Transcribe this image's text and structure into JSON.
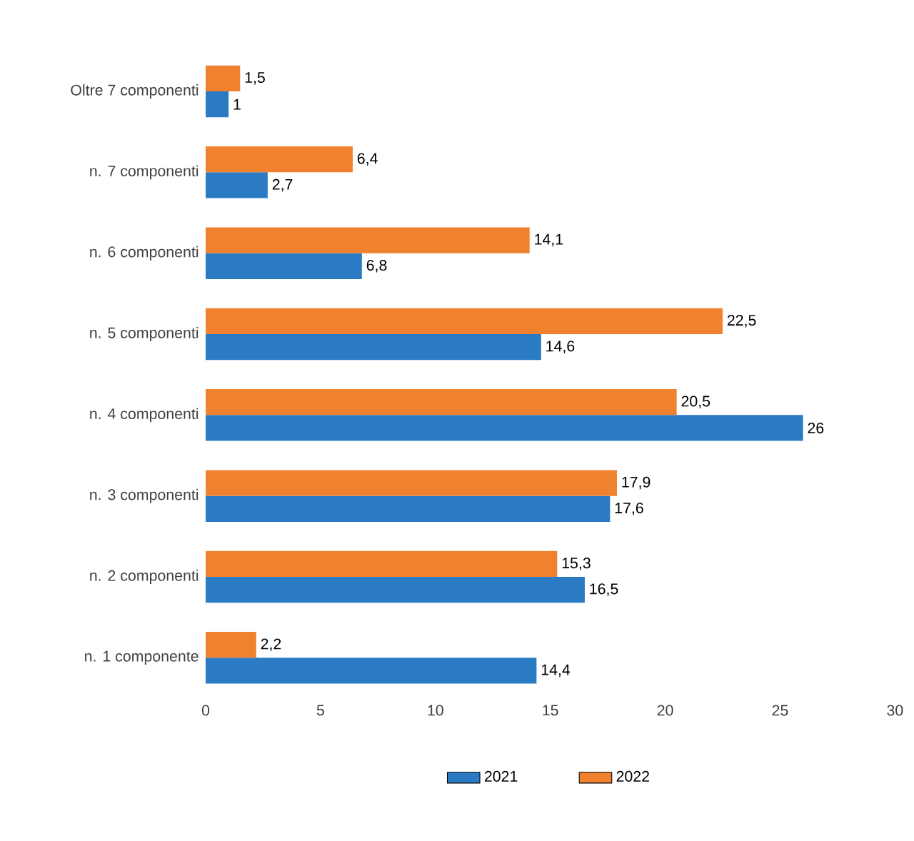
{
  "chart_data": {
    "type": "bar",
    "orientation": "horizontal",
    "categories": [
      "Oltre 7 componenti",
      "n. 7 componenti",
      "n. 6 componenti",
      "n. 5 componenti",
      "n. 4 componenti",
      "n. 3 componenti",
      "n. 2 componenti",
      "n. 1 componente"
    ],
    "series": [
      {
        "name": "2021",
        "color": "#2b7bc4",
        "values": [
          1,
          2.7,
          6.8,
          14.6,
          26,
          17.6,
          16.5,
          14.4
        ],
        "value_labels": [
          "1",
          "2,7",
          "6,8",
          "14,6",
          "26",
          "17,6",
          "16,5",
          "14,4"
        ]
      },
      {
        "name": "2022",
        "color": "#f0822f",
        "values": [
          1.5,
          6.4,
          14.1,
          22.5,
          20.5,
          17.9,
          15.3,
          2.2
        ],
        "value_labels": [
          "1,5",
          "6,4",
          "14,1",
          "22,5",
          "20,5",
          "17,9",
          "15,3",
          "2,2"
        ]
      }
    ],
    "xlim": [
      0,
      30
    ],
    "xticks": [
      0,
      5,
      10,
      15,
      20,
      25,
      30
    ],
    "grid": false,
    "legend": "bottom"
  }
}
